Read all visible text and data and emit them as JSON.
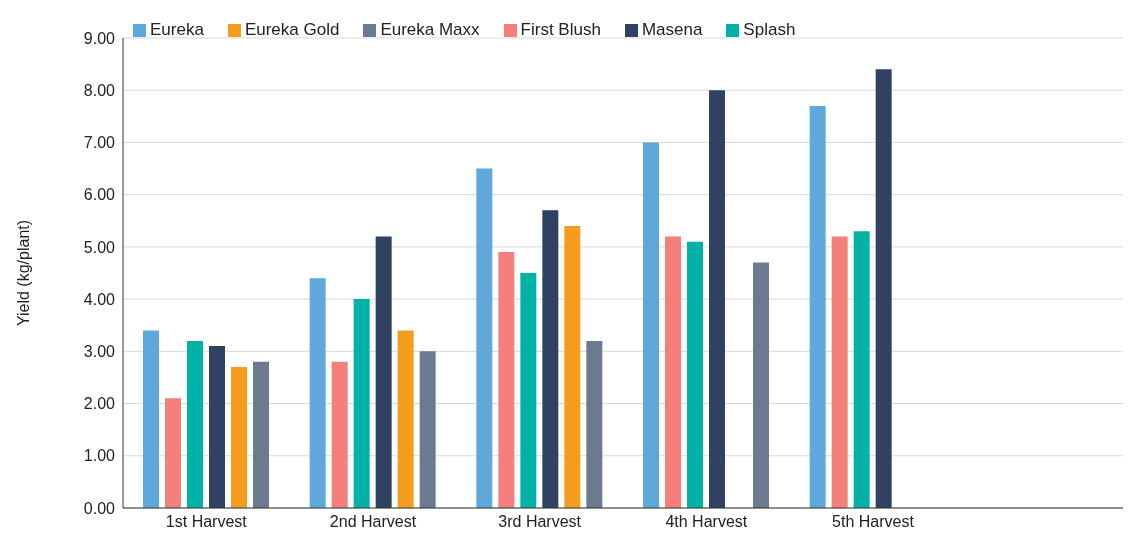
{
  "chart_data": {
    "type": "bar",
    "ylabel": "Yield (kg/plant)",
    "categories": [
      "1st Harvest",
      "2nd Harvest",
      "3rd Harvest",
      "4th Harvest",
      "5th Harvest",
      null
    ],
    "series": [
      {
        "name": "Eureka",
        "color": "#5fa8dc",
        "values": [
          3.4,
          4.4,
          6.5,
          7.0,
          7.7,
          null
        ]
      },
      {
        "name": "First Blush",
        "color": "#f47f7b",
        "values": [
          2.1,
          2.8,
          4.9,
          5.2,
          5.2,
          null
        ]
      },
      {
        "name": "Splash",
        "color": "#00b3a6",
        "values": [
          3.2,
          4.0,
          4.5,
          5.1,
          5.3,
          null
        ]
      },
      {
        "name": "Masena",
        "color": "#2f4262",
        "values": [
          3.1,
          5.2,
          5.7,
          8.0,
          8.4,
          null
        ]
      },
      {
        "name": "Eureka Gold",
        "color": "#f59d1f",
        "values": [
          2.7,
          3.4,
          5.4,
          null,
          null,
          null
        ]
      },
      {
        "name": "Eureka Maxx",
        "color": "#6c7a8f",
        "values": [
          2.8,
          3.0,
          3.2,
          4.7,
          null,
          null
        ]
      }
    ],
    "ylim": [
      0,
      9
    ],
    "yticks": [
      {
        "value": 0,
        "label": "0.00"
      },
      {
        "value": 1,
        "label": "1.00"
      },
      {
        "value": 2,
        "label": "2.00"
      },
      {
        "value": 3,
        "label": "3.00"
      },
      {
        "value": 4,
        "label": "4.00"
      },
      {
        "value": 5,
        "label": "5.00"
      },
      {
        "value": 6,
        "label": "6.00"
      },
      {
        "value": 7,
        "label": "7.00"
      },
      {
        "value": 8,
        "label": "8.00"
      },
      {
        "value": 9,
        "label": "9.00"
      }
    ],
    "grid": "y",
    "legend": "top left"
  }
}
